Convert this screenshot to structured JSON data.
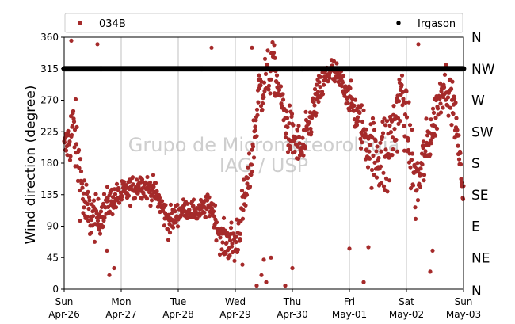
{
  "chart_data": {
    "type": "scatter",
    "ylabel": "Wind direction (degree)",
    "ylim": [
      0,
      360
    ],
    "yticks": [
      0,
      45,
      90,
      135,
      180,
      225,
      270,
      315,
      360
    ],
    "xlim": [
      "2020-04-26",
      "2020-05-03"
    ],
    "xticks": [
      {
        "date": "2020-04-26",
        "day": "Sun",
        "label": "Apr-26"
      },
      {
        "date": "2020-04-27",
        "day": "Mon",
        "label": "Apr-27"
      },
      {
        "date": "2020-04-28",
        "day": "Tue",
        "label": "Apr-28"
      },
      {
        "date": "2020-04-29",
        "day": "Wed",
        "label": "Apr-29"
      },
      {
        "date": "2020-04-30",
        "day": "Thu",
        "label": "Apr-30"
      },
      {
        "date": "2020-05-01",
        "day": "Fri",
        "label": "May-01"
      },
      {
        "date": "2020-05-02",
        "day": "Sat",
        "label": "May-02"
      },
      {
        "date": "2020-05-03",
        "day": "Sun",
        "label": "May-03"
      }
    ],
    "direction_labels": [
      "N",
      "NE",
      "E",
      "SE",
      "S",
      "SW",
      "W",
      "NW",
      "N"
    ],
    "grid": "vertical at day ticks",
    "legend_position": "top, above plot",
    "watermark": [
      "Grupo de Micrometeorologia",
      "IAG / USP"
    ],
    "series": [
      {
        "name": "034B",
        "color": "#a52a2a",
        "marker": "dot",
        "centers": [
          {
            "t": "2020-04-26 00:00",
            "dir": 200,
            "spread": 25
          },
          {
            "t": "2020-04-26 04:00",
            "dir": 230,
            "spread": 60
          },
          {
            "t": "2020-04-26 09:00",
            "dir": 110,
            "spread": 55
          },
          {
            "t": "2020-04-26 14:00",
            "dir": 100,
            "spread": 30
          },
          {
            "t": "2020-04-26 19:00",
            "dir": 125,
            "spread": 25
          },
          {
            "t": "2020-04-27 00:00",
            "dir": 135,
            "spread": 20
          },
          {
            "t": "2020-04-27 08:00",
            "dir": 150,
            "spread": 20
          },
          {
            "t": "2020-04-27 14:00",
            "dir": 140,
            "spread": 20
          },
          {
            "t": "2020-04-27 20:00",
            "dir": 95,
            "spread": 25
          },
          {
            "t": "2020-04-28 02:00",
            "dir": 115,
            "spread": 15
          },
          {
            "t": "2020-04-28 08:00",
            "dir": 110,
            "spread": 15
          },
          {
            "t": "2020-04-28 14:00",
            "dir": 120,
            "spread": 20
          },
          {
            "t": "2020-04-28 18:00",
            "dir": 70,
            "spread": 25
          },
          {
            "t": "2020-04-29 00:00",
            "dir": 65,
            "spread": 40
          },
          {
            "t": "2020-04-29 06:00",
            "dir": 160,
            "spread": 35
          },
          {
            "t": "2020-04-29 10:00",
            "dir": 280,
            "spread": 50
          },
          {
            "t": "2020-04-29 16:00",
            "dir": 320,
            "spread": 35
          },
          {
            "t": "2020-04-29 22:00",
            "dir": 230,
            "spread": 40
          },
          {
            "t": "2020-04-30 04:00",
            "dir": 195,
            "spread": 35
          },
          {
            "t": "2020-04-30 10:00",
            "dir": 270,
            "spread": 30
          },
          {
            "t": "2020-04-30 16:00",
            "dir": 315,
            "spread": 25
          },
          {
            "t": "2020-04-30 22:00",
            "dir": 290,
            "spread": 20
          },
          {
            "t": "2020-05-01 04:00",
            "dir": 240,
            "spread": 35
          },
          {
            "t": "2020-05-01 10:00",
            "dir": 195,
            "spread": 55
          },
          {
            "t": "2020-05-01 16:00",
            "dir": 190,
            "spread": 80
          },
          {
            "t": "2020-05-01 22:00",
            "dir": 280,
            "spread": 50
          },
          {
            "t": "2020-05-02 04:00",
            "dir": 140,
            "spread": 60
          },
          {
            "t": "2020-05-02 10:00",
            "dir": 220,
            "spread": 40
          },
          {
            "t": "2020-05-02 16:00",
            "dir": 300,
            "spread": 35
          },
          {
            "t": "2020-05-02 20:00",
            "dir": 260,
            "spread": 30
          },
          {
            "t": "2020-05-03 00:00",
            "dir": 135,
            "spread": 20
          }
        ],
        "outliers": [
          {
            "t": "2020-04-26 03:00",
            "dir": 355
          },
          {
            "t": "2020-04-26 14:00",
            "dir": 350
          },
          {
            "t": "2020-04-26 18:00",
            "dir": 55
          },
          {
            "t": "2020-04-26 19:00",
            "dir": 20
          },
          {
            "t": "2020-04-26 21:00",
            "dir": 30
          },
          {
            "t": "2020-04-28 14:00",
            "dir": 345
          },
          {
            "t": "2020-04-29 03:00",
            "dir": 35
          },
          {
            "t": "2020-04-29 07:00",
            "dir": 345
          },
          {
            "t": "2020-04-29 09:00",
            "dir": 5
          },
          {
            "t": "2020-04-29 11:00",
            "dir": 20
          },
          {
            "t": "2020-04-29 12:00",
            "dir": 42
          },
          {
            "t": "2020-04-29 13:00",
            "dir": 10
          },
          {
            "t": "2020-04-29 15:00",
            "dir": 45
          },
          {
            "t": "2020-04-29 21:00",
            "dir": 5
          },
          {
            "t": "2020-04-30 00:00",
            "dir": 30
          },
          {
            "t": "2020-05-01 00:00",
            "dir": 58
          },
          {
            "t": "2020-05-01 06:00",
            "dir": 10
          },
          {
            "t": "2020-05-01 08:00",
            "dir": 60
          },
          {
            "t": "2020-05-02 05:00",
            "dir": 350
          },
          {
            "t": "2020-05-02 10:00",
            "dir": 25
          },
          {
            "t": "2020-05-02 11:00",
            "dir": 55
          }
        ]
      },
      {
        "name": "Irgason",
        "color": "#000000",
        "marker": "dot",
        "constant_dir": 315
      }
    ]
  }
}
